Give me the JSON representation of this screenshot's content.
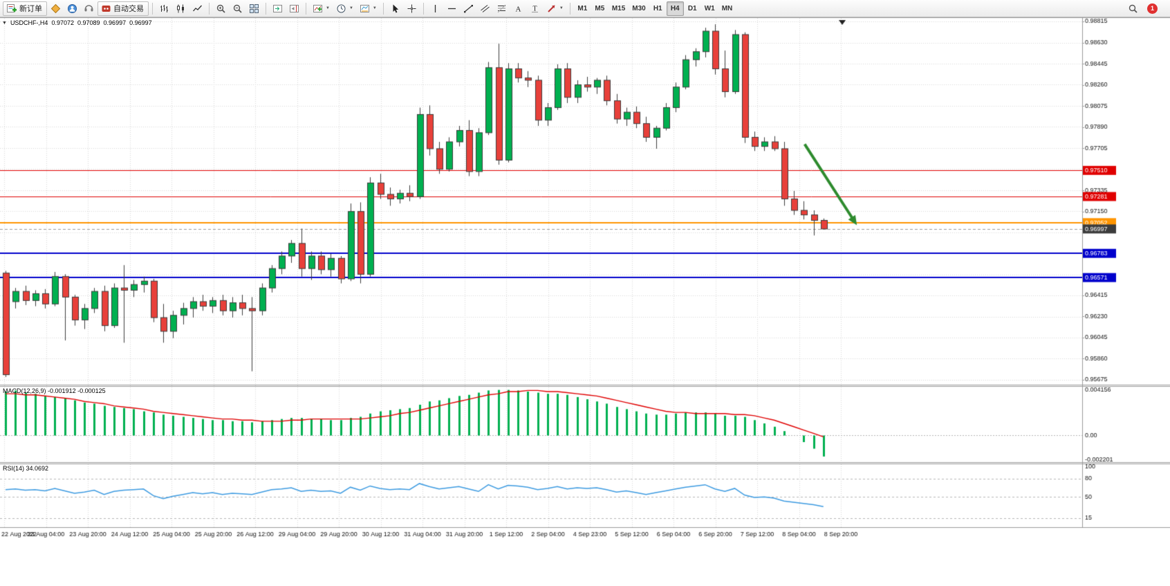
{
  "toolbar": {
    "new_order_label": "新订单",
    "autotrading_label": "自动交易",
    "timeframes": [
      "M1",
      "M5",
      "M15",
      "M30",
      "H1",
      "H4",
      "D1",
      "W1",
      "MN"
    ],
    "active_timeframe": "H4",
    "alert_badge": "1"
  },
  "chart_window": {
    "title": {
      "symbol": "USDCHF-,H4",
      "open": "0.97072",
      "high": "0.97089",
      "low": "0.96997",
      "close": "0.96997"
    },
    "macd_label": {
      "name": "MACD(12,26,9)",
      "values": "-0.001912 -0.000125"
    },
    "rsi_label": {
      "name": "RSI(14)",
      "value": "34.0692"
    }
  },
  "chart_data": [
    {
      "type": "candlestick",
      "symbol": "USDCHF-",
      "timeframe": "H4",
      "ohlc": [
        [
          0.9661,
          0.9663,
          0.957,
          0.9572
        ],
        [
          0.9636,
          0.9648,
          0.963,
          0.9645
        ],
        [
          0.9645,
          0.965,
          0.9633,
          0.9637
        ],
        [
          0.9637,
          0.9646,
          0.9632,
          0.9643
        ],
        [
          0.9643,
          0.9647,
          0.963,
          0.9634
        ],
        [
          0.9634,
          0.9662,
          0.9632,
          0.9658
        ],
        [
          0.9658,
          0.966,
          0.9602,
          0.964
        ],
        [
          0.964,
          0.9642,
          0.9615,
          0.962
        ],
        [
          0.962,
          0.9634,
          0.9612,
          0.963
        ],
        [
          0.963,
          0.9648,
          0.9626,
          0.9645
        ],
        [
          0.9645,
          0.965,
          0.961,
          0.9615
        ],
        [
          0.9615,
          0.9652,
          0.9613,
          0.9648
        ],
        [
          0.9648,
          0.9668,
          0.96,
          0.9646
        ],
        [
          0.9646,
          0.9655,
          0.964,
          0.9651
        ],
        [
          0.9651,
          0.9658,
          0.9644,
          0.9654
        ],
        [
          0.9654,
          0.9656,
          0.9618,
          0.9622
        ],
        [
          0.9622,
          0.9634,
          0.96,
          0.961
        ],
        [
          0.961,
          0.9628,
          0.9604,
          0.9624
        ],
        [
          0.9624,
          0.9635,
          0.9616,
          0.963
        ],
        [
          0.963,
          0.964,
          0.9622,
          0.9636
        ],
        [
          0.9636,
          0.9642,
          0.9628,
          0.9632
        ],
        [
          0.9632,
          0.964,
          0.9626,
          0.9637
        ],
        [
          0.9637,
          0.9642,
          0.9624,
          0.9628
        ],
        [
          0.9628,
          0.964,
          0.9622,
          0.9635
        ],
        [
          0.9635,
          0.9642,
          0.9624,
          0.963
        ],
        [
          0.963,
          0.964,
          0.9575,
          0.9628
        ],
        [
          0.9628,
          0.9652,
          0.9624,
          0.9648
        ],
        [
          0.9648,
          0.9668,
          0.9644,
          0.9665
        ],
        [
          0.9665,
          0.968,
          0.966,
          0.9676
        ],
        [
          0.9676,
          0.969,
          0.967,
          0.9687
        ],
        [
          0.9687,
          0.97,
          0.9658,
          0.9665
        ],
        [
          0.9665,
          0.968,
          0.9655,
          0.9676
        ],
        [
          0.9676,
          0.968,
          0.966,
          0.9664
        ],
        [
          0.9664,
          0.9678,
          0.9658,
          0.9674
        ],
        [
          0.9674,
          0.9676,
          0.9652,
          0.9656
        ],
        [
          0.9656,
          0.9722,
          0.9654,
          0.9715
        ],
        [
          0.9715,
          0.9723,
          0.9652,
          0.966
        ],
        [
          0.966,
          0.9745,
          0.9658,
          0.974
        ],
        [
          0.974,
          0.9748,
          0.9726,
          0.973
        ],
        [
          0.973,
          0.9736,
          0.972,
          0.9726
        ],
        [
          0.9726,
          0.9734,
          0.9722,
          0.9731
        ],
        [
          0.9731,
          0.9738,
          0.9724,
          0.9728
        ],
        [
          0.9728,
          0.9806,
          0.9726,
          0.98
        ],
        [
          0.98,
          0.9808,
          0.9764,
          0.977
        ],
        [
          0.977,
          0.9776,
          0.9748,
          0.9752
        ],
        [
          0.9752,
          0.978,
          0.975,
          0.9776
        ],
        [
          0.9776,
          0.979,
          0.9772,
          0.9786
        ],
        [
          0.9786,
          0.9795,
          0.9746,
          0.975
        ],
        [
          0.975,
          0.9788,
          0.9746,
          0.9784
        ],
        [
          0.9784,
          0.9846,
          0.9782,
          0.9841
        ],
        [
          0.9841,
          0.9862,
          0.9756,
          0.976
        ],
        [
          0.976,
          0.9845,
          0.9758,
          0.984
        ],
        [
          0.984,
          0.9845,
          0.9828,
          0.9832
        ],
        [
          0.9832,
          0.9838,
          0.9824,
          0.983
        ],
        [
          0.983,
          0.9834,
          0.979,
          0.9795
        ],
        [
          0.9795,
          0.981,
          0.979,
          0.9806
        ],
        [
          0.9806,
          0.9844,
          0.9804,
          0.984
        ],
        [
          0.984,
          0.9845,
          0.981,
          0.9815
        ],
        [
          0.9815,
          0.983,
          0.981,
          0.9826
        ],
        [
          0.9826,
          0.9833,
          0.982,
          0.9824
        ],
        [
          0.9824,
          0.9832,
          0.9818,
          0.983
        ],
        [
          0.983,
          0.9834,
          0.9808,
          0.9812
        ],
        [
          0.9812,
          0.9818,
          0.9792,
          0.9796
        ],
        [
          0.9796,
          0.9806,
          0.979,
          0.9802
        ],
        [
          0.9802,
          0.9807,
          0.9788,
          0.9792
        ],
        [
          0.9792,
          0.9798,
          0.9776,
          0.978
        ],
        [
          0.978,
          0.979,
          0.977,
          0.9788
        ],
        [
          0.9788,
          0.981,
          0.9786,
          0.9806
        ],
        [
          0.9806,
          0.9828,
          0.9802,
          0.9824
        ],
        [
          0.9824,
          0.9852,
          0.9822,
          0.9848
        ],
        [
          0.9848,
          0.9858,
          0.9842,
          0.9855
        ],
        [
          0.9855,
          0.9876,
          0.985,
          0.9873
        ],
        [
          0.9873,
          0.9879,
          0.9835,
          0.984
        ],
        [
          0.984,
          0.9856,
          0.9815,
          0.982
        ],
        [
          0.982,
          0.9874,
          0.9818,
          0.987
        ],
        [
          0.987,
          0.9872,
          0.9775,
          0.978
        ],
        [
          0.978,
          0.9785,
          0.9768,
          0.9772
        ],
        [
          0.9772,
          0.978,
          0.9768,
          0.9776
        ],
        [
          0.9776,
          0.9781,
          0.9768,
          0.977
        ],
        [
          0.977,
          0.9776,
          0.972,
          0.9726
        ],
        [
          0.9726,
          0.9733,
          0.9712,
          0.9716
        ],
        [
          0.9716,
          0.9724,
          0.9708,
          0.9712
        ],
        [
          0.9712,
          0.9716,
          0.9694,
          0.97072
        ],
        [
          0.97072,
          0.97089,
          0.96997,
          0.96997
        ]
      ],
      "ylim": [
        0.95675,
        0.98815
      ],
      "grid_yticks": [
        0.98815,
        0.9863,
        0.98446,
        0.98261,
        0.98076,
        0.97891,
        0.97707,
        0.97522,
        0.97337,
        0.97153,
        0.96968,
        0.96783,
        0.96599,
        0.96414,
        0.96229,
        0.96044,
        0.9586,
        0.95675
      ],
      "ytick_labels": [
        {
          "v": 0.98815,
          "t": "0.98815"
        },
        {
          "v": 0.9863,
          "t": "0.98630"
        },
        {
          "v": 0.98445,
          "t": "0.98445"
        },
        {
          "v": 0.9826,
          "t": "0.98260"
        },
        {
          "v": 0.98075,
          "t": "0.98075"
        },
        {
          "v": 0.9789,
          "t": "0.97890"
        },
        {
          "v": 0.97705,
          "t": "0.97705"
        },
        {
          "v": 0.97335,
          "t": "0.97335"
        },
        {
          "v": 0.9715,
          "t": "0.97150"
        },
        {
          "v": 0.96415,
          "t": "0.96415"
        },
        {
          "v": 0.9623,
          "t": "0.96230"
        },
        {
          "v": 0.96045,
          "t": "0.96045"
        },
        {
          "v": 0.9586,
          "t": "0.95860"
        },
        {
          "v": 0.95675,
          "t": "0.95675"
        }
      ],
      "x_labels": [
        "22 Aug 2022",
        "23 Aug 04:00",
        "23 Aug 20:00",
        "24 Aug 12:00",
        "25 Aug 04:00",
        "25 Aug 20:00",
        "26 Aug 12:00",
        "29 Aug 04:00",
        "29 Aug 20:00",
        "30 Aug 12:00",
        "31 Aug 04:00",
        "31 Aug 20:00",
        "1 Sep 12:00",
        "2 Sep 04:00",
        "4 Sep 23:00",
        "5 Sep 12:00",
        "6 Sep 04:00",
        "6 Sep 20:00",
        "7 Sep 12:00",
        "8 Sep 04:00",
        "8 Sep 20:00"
      ],
      "hlines": [
        {
          "price": 0.9751,
          "label": "0.97510",
          "color": "#e00000",
          "width": 1
        },
        {
          "price": 0.97281,
          "label": "0.97281",
          "color": "#e00000",
          "width": 1
        },
        {
          "price": 0.97052,
          "label": "0.97052",
          "color": "#ff9500",
          "width": 2
        },
        {
          "price": 0.96783,
          "label": "0.96783",
          "color": "#0000cc",
          "width": 2
        },
        {
          "price": 0.96571,
          "label": "0.96571",
          "color": "#0000cc",
          "width": 2
        }
      ],
      "current_price": {
        "value": 0.96997,
        "label": "0.96997",
        "badge_color": "#3c3c3c"
      },
      "arrow": {
        "from_index": 81.1,
        "from_price": 0.9774,
        "to_index": 86.4,
        "to_price": 0.9703,
        "color": "#2e8b2e",
        "width": 4
      },
      "colors": {
        "up": "#00b050",
        "down": "#e8403a",
        "wick": "#3c3c3c",
        "grid": "#d9d9d9",
        "axis_text": "#111111",
        "current_dash": "#999999"
      }
    },
    {
      "type": "bar",
      "name": "MACD(12,26,9)",
      "current_values": [
        -0.001912,
        -0.000125
      ],
      "histogram": [
        0.004,
        0.0041,
        0.0039,
        0.0038,
        0.0036,
        0.0035,
        0.0034,
        0.0032,
        0.003,
        0.0029,
        0.0027,
        0.0026,
        0.0025,
        0.0024,
        0.0022,
        0.0021,
        0.0019,
        0.0018,
        0.0017,
        0.0016,
        0.0015,
        0.0014,
        0.0014,
        0.0013,
        0.0013,
        0.0012,
        0.0013,
        0.0014,
        0.0015,
        0.0016,
        0.0016,
        0.0015,
        0.0015,
        0.0014,
        0.0014,
        0.0016,
        0.0017,
        0.002,
        0.0022,
        0.0023,
        0.0024,
        0.0025,
        0.0028,
        0.0031,
        0.0032,
        0.0034,
        0.0036,
        0.0037,
        0.0039,
        0.0041,
        0.00415,
        0.00415,
        0.0041,
        0.004,
        0.0039,
        0.0038,
        0.0038,
        0.0037,
        0.0035,
        0.0033,
        0.0031,
        0.0029,
        0.0026,
        0.0024,
        0.0022,
        0.002,
        0.0019,
        0.0019,
        0.002,
        0.0021,
        0.0021,
        0.0021,
        0.002,
        0.0018,
        0.0018,
        0.0017,
        0.0014,
        0.0011,
        0.0008,
        0.0004,
        0.0,
        -0.0006,
        -0.0012,
        -0.001912
      ],
      "signal": [
        0.0038,
        0.0038,
        0.0037,
        0.0037,
        0.0036,
        0.0035,
        0.0034,
        0.0033,
        0.0031,
        0.003,
        0.0029,
        0.0027,
        0.0026,
        0.0025,
        0.0024,
        0.0022,
        0.0021,
        0.002,
        0.0019,
        0.0018,
        0.0017,
        0.0016,
        0.0015,
        0.0015,
        0.0014,
        0.0014,
        0.0013,
        0.0013,
        0.0013,
        0.0014,
        0.0014,
        0.0015,
        0.0015,
        0.0015,
        0.0015,
        0.0015,
        0.0015,
        0.0016,
        0.0017,
        0.0018,
        0.002,
        0.0021,
        0.0023,
        0.0025,
        0.0027,
        0.0029,
        0.0031,
        0.0033,
        0.0035,
        0.0037,
        0.0038,
        0.004,
        0.004,
        0.0041,
        0.0041,
        0.004,
        0.004,
        0.0039,
        0.0038,
        0.0037,
        0.0036,
        0.0034,
        0.0032,
        0.003,
        0.0028,
        0.0026,
        0.0024,
        0.0022,
        0.0021,
        0.0021,
        0.002,
        0.002,
        0.002,
        0.002,
        0.0019,
        0.0019,
        0.0018,
        0.0016,
        0.0014,
        0.0011,
        0.0008,
        0.0005,
        0.0002,
        -0.000125
      ],
      "ylim": [
        -0.0023,
        0.00425
      ],
      "ytick_labels": [
        {
          "v": 0.004156,
          "t": "0.004156"
        },
        {
          "v": 0,
          "t": "0.00"
        },
        {
          "v": -0.002201,
          "t": "-0.002201"
        }
      ],
      "colors": {
        "histogram": "#00b050",
        "signal": "#e00000"
      }
    },
    {
      "type": "line",
      "name": "RSI(14)",
      "current_value": 34.0692,
      "values": [
        62,
        63,
        61,
        62,
        60,
        64,
        60,
        56,
        58,
        61,
        54,
        59,
        61,
        62,
        63,
        52,
        47,
        51,
        54,
        57,
        55,
        57,
        54,
        56,
        55,
        54,
        58,
        62,
        63,
        65,
        59,
        61,
        59,
        60,
        56,
        66,
        61,
        68,
        64,
        62,
        63,
        62,
        72,
        67,
        63,
        65,
        67,
        63,
        59,
        70,
        63,
        69,
        68,
        66,
        62,
        64,
        67,
        63,
        65,
        64,
        65,
        62,
        58,
        60,
        57,
        54,
        57,
        60,
        63,
        66,
        68,
        70,
        63,
        59,
        64,
        53,
        49,
        50,
        48,
        43,
        41,
        39,
        37,
        34.0692
      ],
      "ylim": [
        0,
        105
      ],
      "levels": [
        80,
        50,
        15
      ],
      "ytick_labels": [
        {
          "v": 100,
          "t": "100"
        },
        {
          "v": 80,
          "t": "80"
        },
        {
          "v": 50,
          "t": "50"
        },
        {
          "v": 15,
          "t": "15"
        }
      ],
      "colors": {
        "line": "#3b9ae1",
        "level": "#b5b5b5"
      }
    }
  ]
}
